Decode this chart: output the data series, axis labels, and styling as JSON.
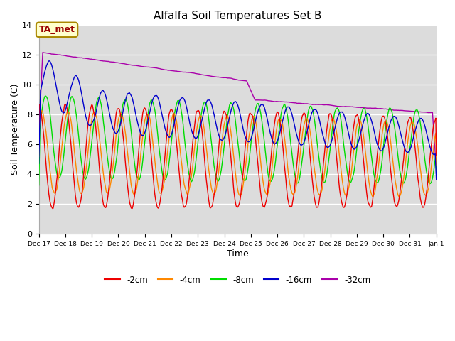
{
  "title": "Alfalfa Soil Temperatures Set B",
  "xlabel": "Time",
  "ylabel": "Soil Temperature (C)",
  "ylim": [
    0,
    14
  ],
  "yticks": [
    0,
    2,
    4,
    6,
    8,
    10,
    12,
    14
  ],
  "bg_color": "#dcdcdc",
  "fig_bg": "#ffffff",
  "annotation_text": "TA_met",
  "annotation_bg": "#ffffcc",
  "annotation_border": "#aa8800",
  "legend_entries": [
    "-2cm",
    "-4cm",
    "-8cm",
    "-16cm",
    "-32cm"
  ],
  "line_colors": [
    "#ee0000",
    "#ff8800",
    "#00dd00",
    "#0000cc",
    "#aa00aa"
  ],
  "n_points": 720
}
